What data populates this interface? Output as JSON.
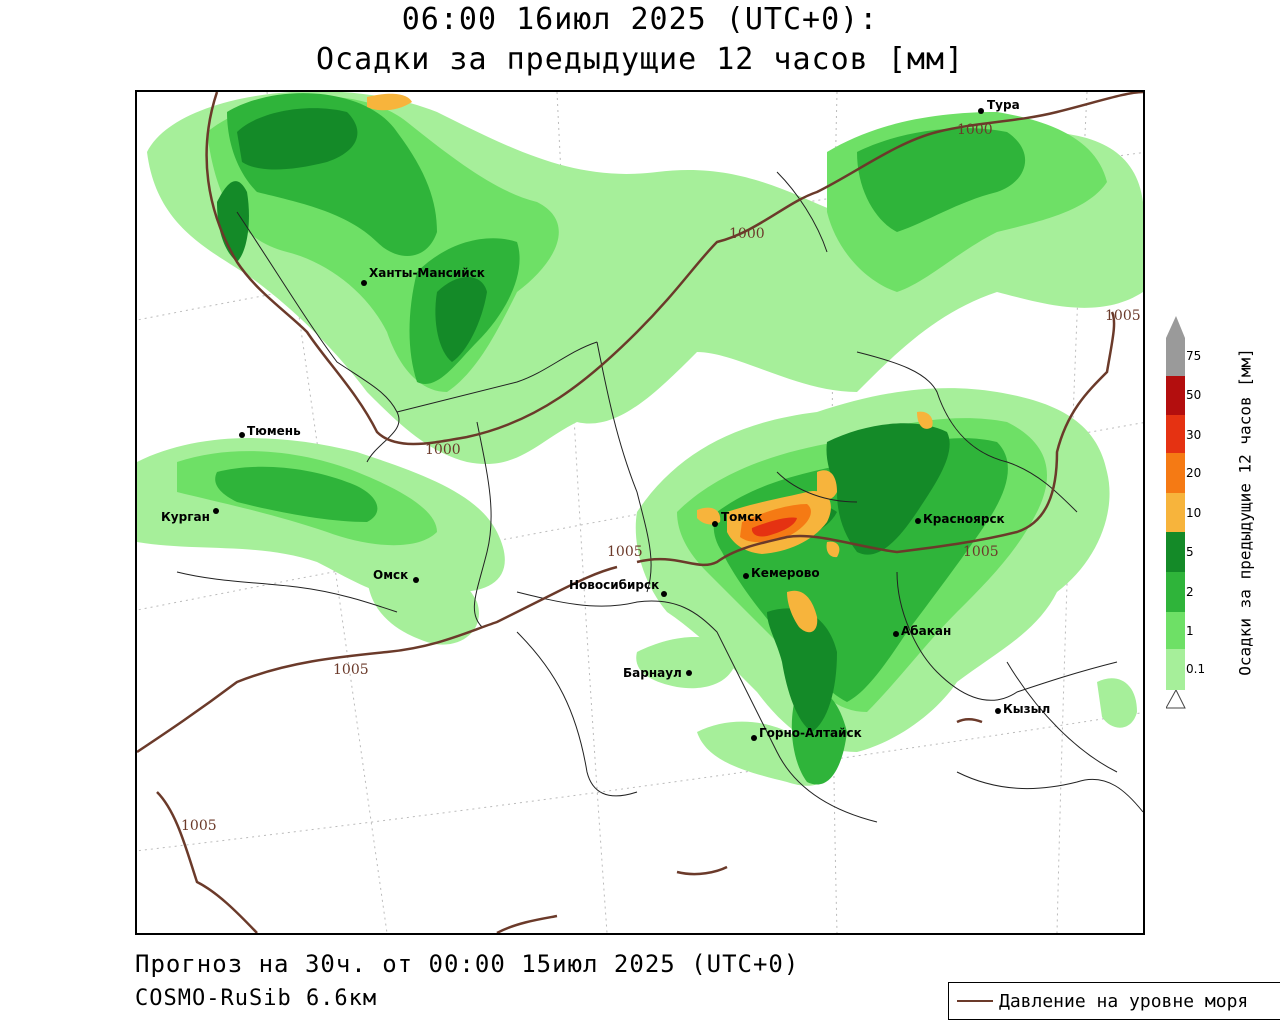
{
  "header": {
    "line1": "06:00 16июл 2025 (UTC+0):",
    "line2": "Осадки за предыдущие 12 часов [мм]"
  },
  "footer": {
    "forecast": "Прогноз на 30ч. от 00:00 15июл 2025 (UTC+0)",
    "model": "COSMO-RuSib 6.6км"
  },
  "legend": {
    "pressure_label": "Давление на уровне моря",
    "line_color": "#6b3a2a"
  },
  "scale": {
    "title": "Осадки за предыдущие 12 часов [мм]",
    "ticks": [
      "0.1",
      "1",
      "2",
      "5",
      "10",
      "20",
      "30",
      "50",
      "75"
    ],
    "colors": [
      "#a6ef9a",
      "#6ee066",
      "#2fb43a",
      "#148a28",
      "#f7b43c",
      "#f57a14",
      "#e53212",
      "#b30e0e",
      "#9a9a9a"
    ]
  },
  "cities": [
    {
      "name": "Тура"
    },
    {
      "name": "Ханты-Мансийск"
    },
    {
      "name": "Тюмень"
    },
    {
      "name": "Курган"
    },
    {
      "name": "Омск"
    },
    {
      "name": "Новосибирск"
    },
    {
      "name": "Томск"
    },
    {
      "name": "Кемерово"
    },
    {
      "name": "Красноярск"
    },
    {
      "name": "Абакан"
    },
    {
      "name": "Барнаул"
    },
    {
      "name": "Горно-Алтайск"
    },
    {
      "name": "Кызыл"
    }
  ],
  "isobar_labels": [
    "1000",
    "1000",
    "1000",
    "1005",
    "1005",
    "1005",
    "1005",
    "1005"
  ]
}
